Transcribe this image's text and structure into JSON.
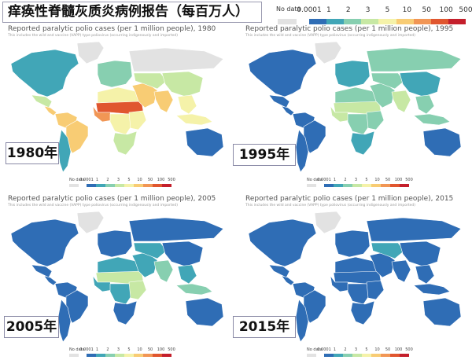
{
  "title": "痒痪性脊髓灰质炎病例报告（每百万人）",
  "legend": {
    "no_data": "No data",
    "ticks": [
      "0.0001",
      "1",
      "2",
      "3",
      "5",
      "10",
      "50",
      "100",
      "500"
    ],
    "colors": [
      "#2f6db5",
      "#41a6b7",
      "#87cfb0",
      "#c7e8a4",
      "#f5f2a9",
      "#f8cc74",
      "#f19655",
      "#e0562f",
      "#c41f2c"
    ],
    "no_data_color": "#e2e2e2"
  },
  "panels": [
    {
      "year_label": "1980年",
      "title": "Reported paralytic polio cases (per 1 million people), 1980",
      "subtitle": "This includes the wild and vaccine (VAPP) type poliovirus (occurring indigenously and imported)",
      "regions": {
        "greenland": 0,
        "north_america": 2,
        "mexico": 4,
        "central_america": 6,
        "south_america_north": 6,
        "brazil": 6,
        "south_america_south": 2,
        "africa_north": 5,
        "sahel": 8,
        "west_africa": 7,
        "central_africa": 5,
        "east_africa": 5,
        "southern_africa": 4,
        "europe": 3,
        "middle_east": 6,
        "russia": 0,
        "central_asia": 4,
        "india": 6,
        "china": 4,
        "southeast_asia": 5,
        "indonesia": 5,
        "australia": 1
      }
    },
    {
      "year_label": "1995年",
      "title": "Reported paralytic polio cases (per 1 million people), 1995",
      "subtitle": "This includes the wild and vaccine (VAPP) type poliovirus (occurring indigenously and imported)",
      "regions": {
        "greenland": 0,
        "north_america": 1,
        "mexico": 1,
        "central_america": 1,
        "south_america_north": 1,
        "brazil": 1,
        "south_america_south": 1,
        "africa_north": 3,
        "sahel": 4,
        "west_africa": 4,
        "central_africa": 3,
        "east_africa": 3,
        "southern_africa": 2,
        "europe": 2,
        "middle_east": 3,
        "russia": 3,
        "central_asia": 3,
        "india": 4,
        "china": 2,
        "southeast_asia": 3,
        "indonesia": 3,
        "australia": 1
      }
    },
    {
      "year_label": "2005年",
      "title": "Reported paralytic polio cases (per 1 million people), 2005",
      "subtitle": "This includes the wild and vaccine (VAPP) type poliovirus (occurring indigenously and imported)",
      "regions": {
        "greenland": 0,
        "north_america": 1,
        "mexico": 1,
        "central_america": 1,
        "south_america_north": 1,
        "brazil": 1,
        "south_america_south": 1,
        "africa_north": 2,
        "sahel": 4,
        "west_africa": 2,
        "central_africa": 2,
        "east_africa": 4,
        "southern_africa": 1,
        "europe": 1,
        "middle_east": 2,
        "russia": 1,
        "central_asia": 2,
        "india": 3,
        "china": 1,
        "southeast_asia": 2,
        "indonesia": 3,
        "australia": 1
      }
    },
    {
      "year_label": "2015年",
      "title": "Reported paralytic polio cases (per 1 million people), 2015",
      "subtitle": "This includes the wild and vaccine (VAPP) type poliovirus (occurring indigenously and imported)",
      "regions": {
        "greenland": 0,
        "north_america": 1,
        "mexico": 1,
        "central_america": 1,
        "south_america_north": 1,
        "brazil": 1,
        "south_america_south": 1,
        "africa_north": 1,
        "sahel": 1,
        "west_africa": 1,
        "central_africa": 1,
        "east_africa": 1,
        "southern_africa": 1,
        "europe": 1,
        "middle_east": 1,
        "russia": 1,
        "central_asia": 2,
        "india": 1,
        "china": 1,
        "southeast_asia": 1,
        "indonesia": 1,
        "australia": 1
      }
    }
  ]
}
